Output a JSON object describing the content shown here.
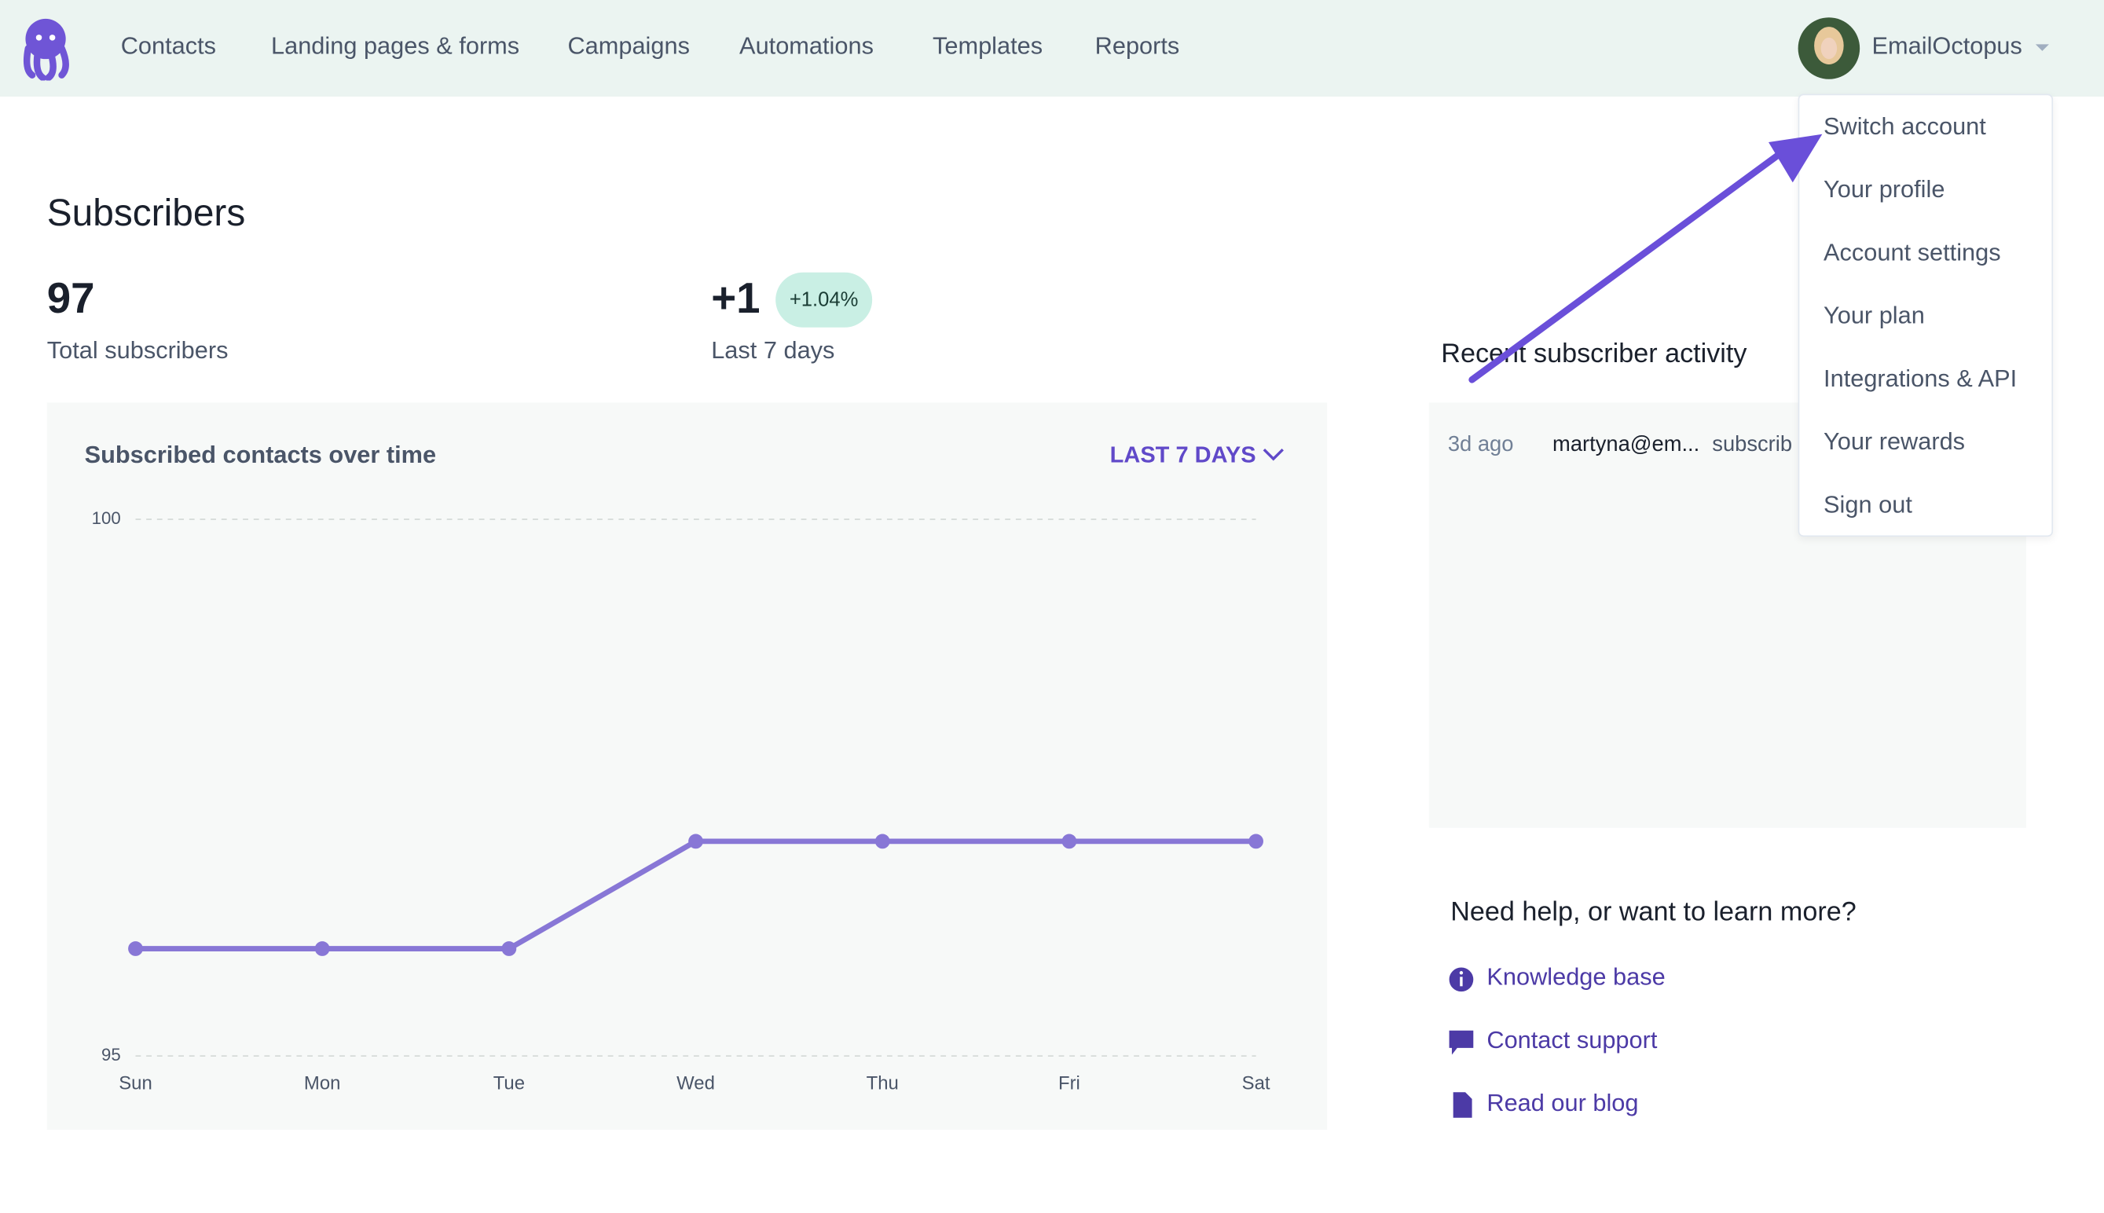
{
  "nav": {
    "items": [
      "Contacts",
      "Landing pages & forms",
      "Campaigns",
      "Automations",
      "Templates",
      "Reports"
    ],
    "account": "EmailOctopus"
  },
  "menu": {
    "items": [
      "Switch account",
      "Your profile",
      "Account settings",
      "Your plan",
      "Integrations & API",
      "Your rewards",
      "Sign out"
    ]
  },
  "subscribers": {
    "heading": "Subscribers",
    "total": 97,
    "total_label": "Total subscribers",
    "change": "+1",
    "change_badge": "+1.04%",
    "change_label": "Last 7 days"
  },
  "chart_data": {
    "type": "line",
    "title": "Subscribed contacts over time",
    "range_button": "LAST 7 DAYS",
    "categories": [
      "Sun",
      "Mon",
      "Tue",
      "Wed",
      "Thu",
      "Fri",
      "Sat"
    ],
    "values": [
      96,
      96,
      96,
      97,
      97,
      97,
      97
    ],
    "color": "#8877d6",
    "ylim": [
      95,
      100
    ],
    "yticks": [
      95,
      100
    ],
    "grid": true
  },
  "activity": {
    "heading": "Recent subscriber activity",
    "rows": [
      [
        "3d ago",
        "martyna@em...",
        "subscrib"
      ]
    ]
  },
  "help": {
    "heading": "Need help, or want to learn more?",
    "links": [
      "Knowledge base",
      "Contact support",
      "Read our blog"
    ]
  }
}
